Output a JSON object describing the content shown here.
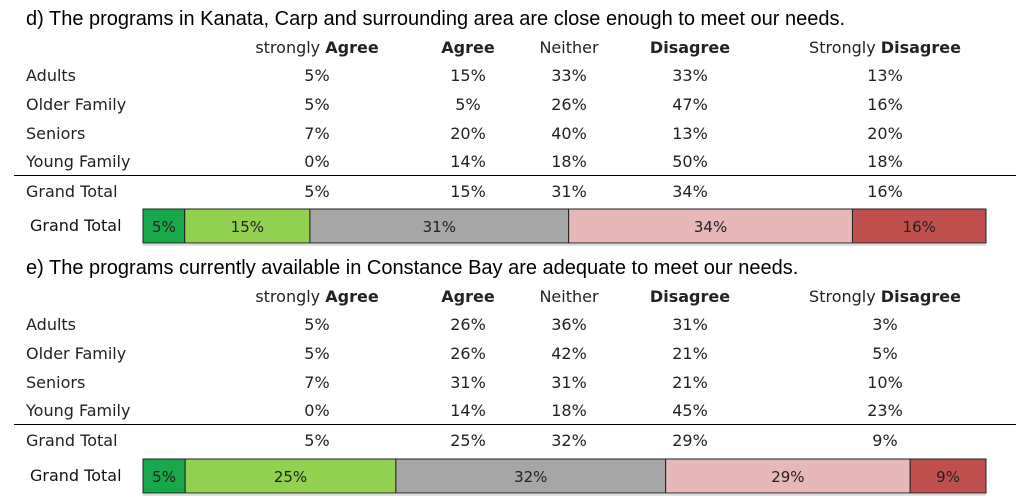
{
  "colors": {
    "strongly_agree": "#17a84b",
    "agree": "#92d050",
    "neither": "#a6a6a6",
    "disagree": "#e6b8b7",
    "strongly_disagree": "#c0504d"
  },
  "columns": {
    "c1_pre": "strongly ",
    "c1_bold": "Agree",
    "c2_bold": "Agree",
    "c3": "Neither",
    "c4_bold": "Disagree",
    "c5_pre": "Strongly ",
    "c5_bold": "Disagree"
  },
  "sections": [
    {
      "question": "d) The programs in Kanata, Carp and surrounding area are close enough to meet our needs.",
      "rows": [
        {
          "label": "Adults",
          "values": [
            "5%",
            "15%",
            "33%",
            "33%",
            "13%"
          ]
        },
        {
          "label": "Older Family",
          "values": [
            "5%",
            "5%",
            "26%",
            "47%",
            "16%"
          ]
        },
        {
          "label": "Seniors",
          "values": [
            "7%",
            "20%",
            "40%",
            "13%",
            "20%"
          ]
        },
        {
          "label": "Young Family",
          "values": [
            "0%",
            "14%",
            "18%",
            "50%",
            "18%"
          ]
        }
      ],
      "total": {
        "label": "Grand Total",
        "values": [
          "5%",
          "15%",
          "31%",
          "34%",
          "16%"
        ]
      },
      "bar_label": "Grand Total"
    },
    {
      "question": "e) The programs currently available in Constance Bay are adequate to meet our needs.",
      "rows": [
        {
          "label": "Adults",
          "values": [
            "5%",
            "26%",
            "36%",
            "31%",
            "3%"
          ]
        },
        {
          "label": "Older Family",
          "values": [
            "5%",
            "26%",
            "42%",
            "21%",
            "5%"
          ]
        },
        {
          "label": "Seniors",
          "values": [
            "7%",
            "31%",
            "31%",
            "21%",
            "10%"
          ]
        },
        {
          "label": "Young Family",
          "values": [
            "0%",
            "14%",
            "18%",
            "45%",
            "23%"
          ]
        }
      ],
      "total": {
        "label": "Grand Total",
        "values": [
          "5%",
          "25%",
          "32%",
          "29%",
          "9%"
        ]
      },
      "bar_label": "Grand Total"
    }
  ],
  "chart_data": [
    {
      "type": "bar",
      "stacked": true,
      "orientation": "horizontal",
      "categories": [
        "Grand Total"
      ],
      "series": [
        {
          "name": "strongly Agree",
          "values": [
            5
          ],
          "label": "5%"
        },
        {
          "name": "Agree",
          "values": [
            15
          ],
          "label": "15%"
        },
        {
          "name": "Neither",
          "values": [
            31
          ],
          "label": "31%"
        },
        {
          "name": "Disagree",
          "values": [
            34
          ],
          "label": "34%"
        },
        {
          "name": "Strongly Disagree",
          "values": [
            16
          ],
          "label": "16%"
        }
      ]
    },
    {
      "type": "bar",
      "stacked": true,
      "orientation": "horizontal",
      "categories": [
        "Grand Total"
      ],
      "series": [
        {
          "name": "strongly Agree",
          "values": [
            5
          ],
          "label": "5%"
        },
        {
          "name": "Agree",
          "values": [
            25
          ],
          "label": "25%"
        },
        {
          "name": "Neither",
          "values": [
            32
          ],
          "label": "32%"
        },
        {
          "name": "Disagree",
          "values": [
            29
          ],
          "label": "29%"
        },
        {
          "name": "Strongly Disagree",
          "values": [
            9
          ],
          "label": "9%"
        }
      ]
    }
  ]
}
